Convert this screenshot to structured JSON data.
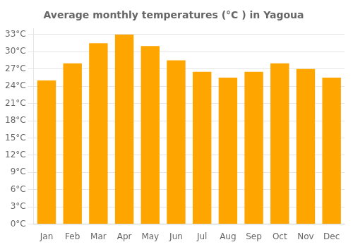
{
  "chart_data": {
    "type": "bar",
    "title": "Average monthly temperatures (°C ) in Yagoua",
    "categories": [
      "Jan",
      "Feb",
      "Mar",
      "Apr",
      "May",
      "Jun",
      "Jul",
      "Aug",
      "Sep",
      "Oct",
      "Nov",
      "Dec"
    ],
    "values": [
      25,
      28,
      31.5,
      33,
      31,
      28.5,
      26.5,
      25.5,
      26.5,
      28,
      27,
      25.5
    ],
    "color": "#FFA500",
    "ylim": [
      0,
      34
    ],
    "yticks": [
      {
        "value": 0,
        "label": "0°C"
      },
      {
        "value": 3,
        "label": "3°C"
      },
      {
        "value": 6,
        "label": "6°C"
      },
      {
        "value": 9,
        "label": "9°C"
      },
      {
        "value": 12,
        "label": "12°C"
      },
      {
        "value": 15,
        "label": "15°C"
      },
      {
        "value": 18,
        "label": "18°C"
      },
      {
        "value": 21,
        "label": "21°C"
      },
      {
        "value": 24,
        "label": "24°C"
      },
      {
        "value": 27,
        "label": "27°C"
      },
      {
        "value": 30,
        "label": "30°C"
      },
      {
        "value": 33,
        "label": "33°C"
      }
    ],
    "grid": true
  }
}
